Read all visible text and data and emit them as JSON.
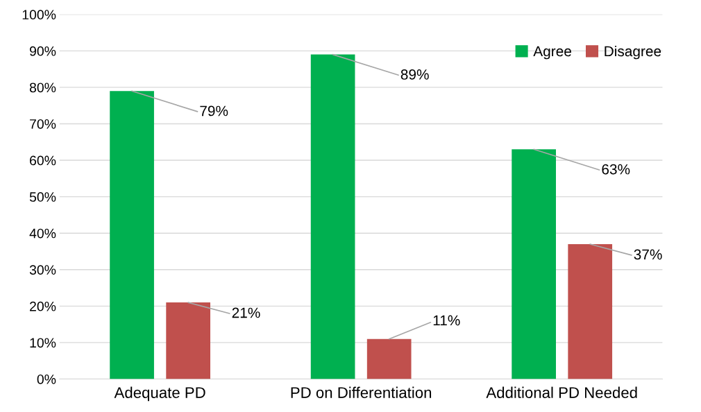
{
  "chart_data": {
    "type": "bar",
    "categories": [
      "Adequate PD",
      "PD on Differentiation",
      "Additional PD Needed"
    ],
    "series": [
      {
        "name": "Agree",
        "color": "#00b050",
        "values": [
          79,
          89,
          63
        ],
        "value_labels": [
          "79%",
          "89%",
          "63%"
        ]
      },
      {
        "name": "Disagree",
        "color": "#c0504d",
        "values": [
          21,
          11,
          37
        ],
        "value_labels": [
          "21%",
          "11%",
          "37%"
        ]
      }
    ],
    "ylim": [
      0,
      100
    ],
    "yticks": [
      {
        "value": 0,
        "label": "0%"
      },
      {
        "value": 10,
        "label": "10%"
      },
      {
        "value": 20,
        "label": "20%"
      },
      {
        "value": 30,
        "label": "30%"
      },
      {
        "value": 40,
        "label": "40%"
      },
      {
        "value": 50,
        "label": "50%"
      },
      {
        "value": 60,
        "label": "60%"
      },
      {
        "value": 70,
        "label": "70%"
      },
      {
        "value": 80,
        "label": "80%"
      },
      {
        "value": 90,
        "label": "90%"
      },
      {
        "value": 100,
        "label": "100%"
      }
    ],
    "grid": "y",
    "legend": "top right"
  }
}
